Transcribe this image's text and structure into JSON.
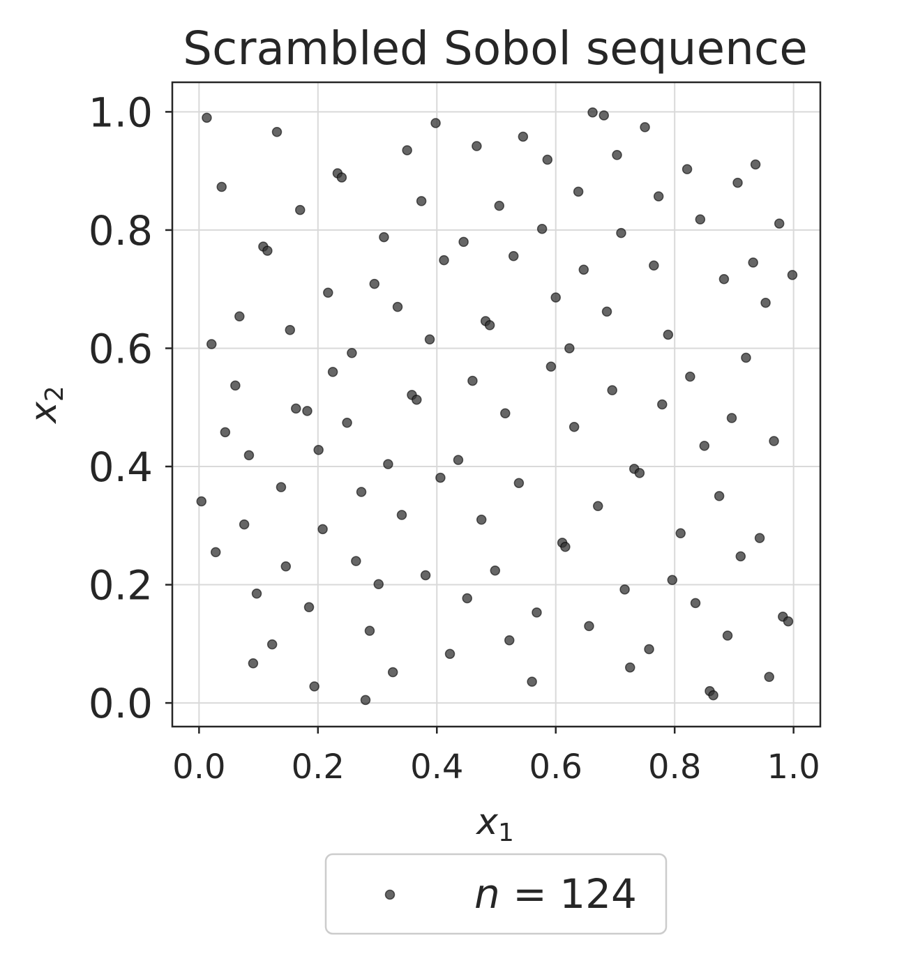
{
  "chart_data": {
    "type": "scatter",
    "title": "Scrambled Sobol sequence",
    "xlabel": {
      "base": "x",
      "sub": "1"
    },
    "ylabel": {
      "base": "x",
      "sub": "2"
    },
    "xlim": [
      -0.045,
      1.045
    ],
    "ylim": [
      -0.04,
      1.05
    ],
    "xticks": [
      0.0,
      0.2,
      0.4,
      0.6,
      0.8,
      1.0
    ],
    "yticks": [
      0.0,
      0.2,
      0.4,
      0.6,
      0.8,
      1.0
    ],
    "xtick_labels": [
      "0.0",
      "0.2",
      "0.4",
      "0.6",
      "0.8",
      "1.0"
    ],
    "ytick_labels": [
      "0.0",
      "0.2",
      "0.4",
      "0.6",
      "0.8",
      "1.0"
    ],
    "grid": true,
    "legend": {
      "position": "bottom-center",
      "label_var": "n",
      "label_eq": " = 124"
    },
    "colors": {
      "marker": "#333333",
      "grid": "#d9d9d9",
      "frame": "#262626",
      "text": "#262626"
    },
    "series": [
      {
        "name": "n = 124",
        "x": [
          0.013,
          0.131,
          0.038,
          0.233,
          0.24,
          0.17,
          0.108,
          0.115,
          0.398,
          0.35,
          0.467,
          0.545,
          0.586,
          0.374,
          0.505,
          0.311,
          0.445,
          0.412,
          0.529,
          0.577,
          0.662,
          0.681,
          0.75,
          0.703,
          0.821,
          0.936,
          0.906,
          0.773,
          0.638,
          0.843,
          0.976,
          0.71,
          0.932,
          0.765,
          0.647,
          0.883,
          0.998,
          0.295,
          0.217,
          0.068,
          0.153,
          0.021,
          0.334,
          0.482,
          0.489,
          0.388,
          0.257,
          0.225,
          0.061,
          0.358,
          0.366,
          0.46,
          0.515,
          0.249,
          0.163,
          0.182,
          0.044,
          0.084,
          0.201,
          0.318,
          0.436,
          0.406,
          0.538,
          0.6,
          0.686,
          0.789,
          0.623,
          0.592,
          0.826,
          0.92,
          0.953,
          0.695,
          0.779,
          0.631,
          0.85,
          0.896,
          0.967,
          0.732,
          0.741,
          0.875,
          0.004,
          0.138,
          0.076,
          0.273,
          0.341,
          0.208,
          0.475,
          0.028,
          0.146,
          0.264,
          0.097,
          0.302,
          0.381,
          0.451,
          0.498,
          0.611,
          0.616,
          0.671,
          0.716,
          0.796,
          0.81,
          0.835,
          0.911,
          0.943,
          0.185,
          0.123,
          0.091,
          0.287,
          0.326,
          0.194,
          0.28,
          0.422,
          0.522,
          0.568,
          0.56,
          0.656,
          0.757,
          0.725,
          0.889,
          0.859,
          0.865,
          0.959,
          0.982,
          0.991
        ],
        "y": [
          0.99,
          0.966,
          0.873,
          0.896,
          0.889,
          0.834,
          0.772,
          0.765,
          0.981,
          0.935,
          0.942,
          0.958,
          0.919,
          0.849,
          0.841,
          0.788,
          0.78,
          0.749,
          0.756,
          0.802,
          0.999,
          0.994,
          0.974,
          0.927,
          0.903,
          0.911,
          0.88,
          0.857,
          0.865,
          0.818,
          0.811,
          0.795,
          0.745,
          0.74,
          0.733,
          0.717,
          0.724,
          0.709,
          0.694,
          0.654,
          0.631,
          0.607,
          0.67,
          0.646,
          0.639,
          0.615,
          0.592,
          0.56,
          0.537,
          0.521,
          0.513,
          0.545,
          0.49,
          0.474,
          0.498,
          0.494,
          0.458,
          0.419,
          0.428,
          0.404,
          0.411,
          0.381,
          0.372,
          0.686,
          0.662,
          0.623,
          0.6,
          0.569,
          0.552,
          0.584,
          0.677,
          0.529,
          0.505,
          0.467,
          0.435,
          0.482,
          0.443,
          0.396,
          0.389,
          0.35,
          0.341,
          0.365,
          0.302,
          0.357,
          0.318,
          0.294,
          0.31,
          0.255,
          0.231,
          0.24,
          0.185,
          0.201,
          0.216,
          0.177,
          0.224,
          0.271,
          0.264,
          0.333,
          0.192,
          0.208,
          0.287,
          0.169,
          0.248,
          0.279,
          0.162,
          0.099,
          0.067,
          0.122,
          0.052,
          0.028,
          0.005,
          0.083,
          0.106,
          0.153,
          0.036,
          0.13,
          0.091,
          0.06,
          0.114,
          0.02,
          0.013,
          0.044,
          0.146,
          0.138
        ]
      }
    ]
  }
}
